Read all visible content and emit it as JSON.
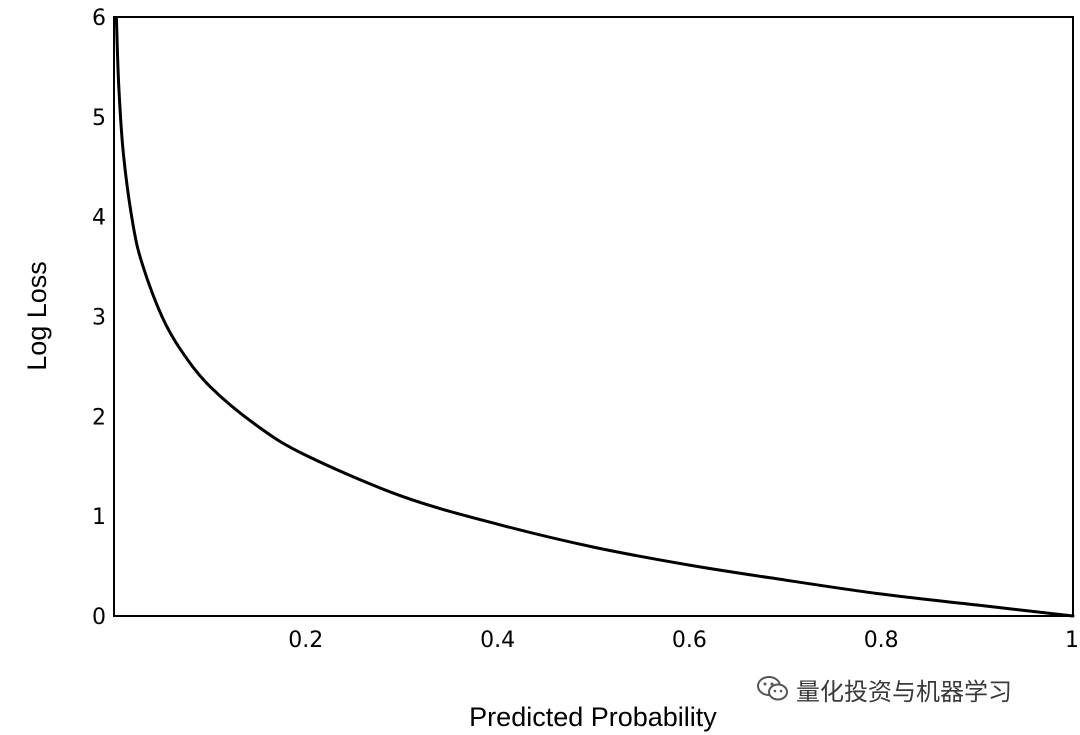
{
  "chart_data": {
    "type": "line",
    "xlabel": "Predicted Probability",
    "ylabel": "Log Loss",
    "xlim": [
      0,
      1
    ],
    "ylim": [
      0,
      6
    ],
    "x_ticks": [
      0.2,
      0.4,
      0.6,
      0.8,
      1
    ],
    "x_tick_labels": [
      "0.2",
      "0.4",
      "0.6",
      "0.8",
      "1"
    ],
    "y_ticks": [
      0,
      1,
      2,
      3,
      4,
      5,
      6
    ],
    "y_tick_labels": [
      "0",
      "1",
      "2",
      "3",
      "4",
      "5",
      "6"
    ],
    "grid": false,
    "series": [
      {
        "x": [
          0.0025,
          0.005,
          0.01,
          0.02,
          0.03,
          0.05,
          0.07,
          0.1,
          0.15,
          0.2,
          0.3,
          0.4,
          0.5,
          0.6,
          0.7,
          0.8,
          0.9,
          1.0
        ],
        "y": [
          5.99,
          5.3,
          4.61,
          3.91,
          3.51,
          3.0,
          2.66,
          2.3,
          1.9,
          1.61,
          1.2,
          0.92,
          0.69,
          0.51,
          0.36,
          0.22,
          0.11,
          0.0
        ],
        "color": "#000000"
      }
    ]
  },
  "watermark": {
    "icon": "wechat-icon",
    "text": "量化投资与机器学习"
  }
}
